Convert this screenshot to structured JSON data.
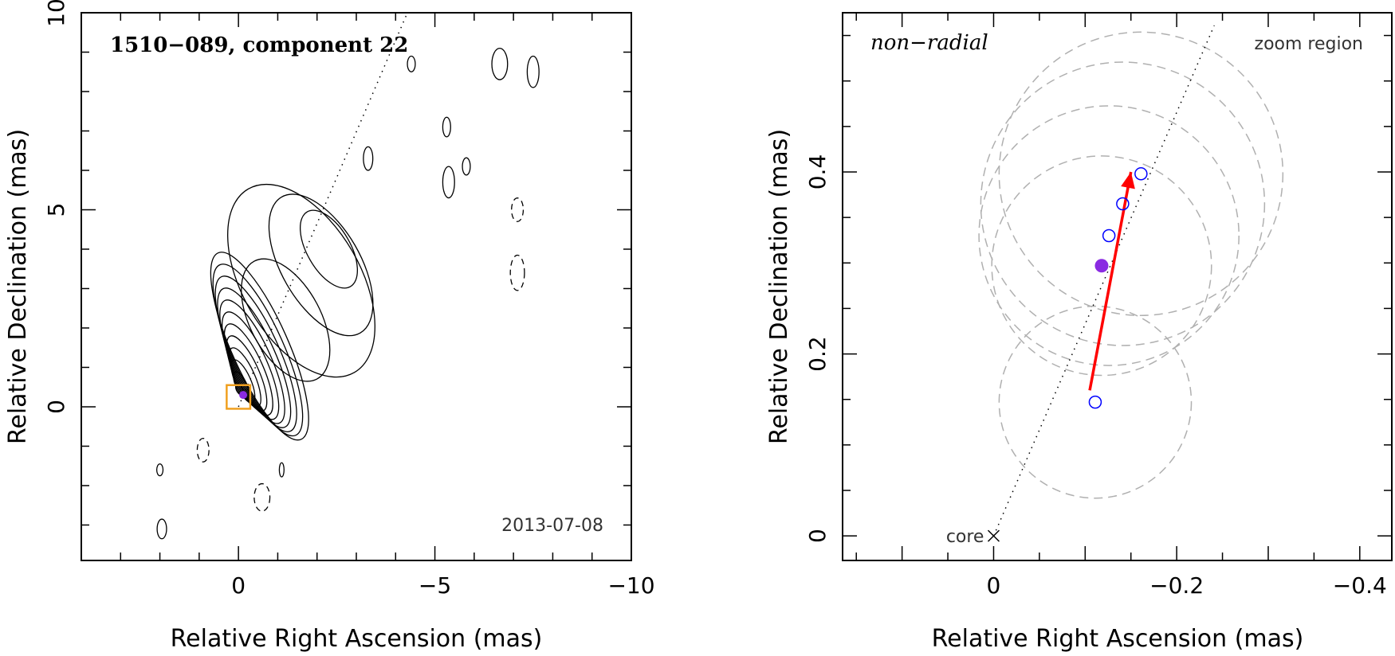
{
  "chart_data": [
    {
      "type": "contour",
      "title": "1510−089, component 22",
      "date_label": "2013-07-08",
      "xlabel": "Relative Right Ascension (mas)",
      "ylabel": "Relative Declination (mas)",
      "xlim": [
        4,
        -10
      ],
      "ylim": [
        -3.9,
        10
      ],
      "x_ticks": [
        0,
        -5,
        -10
      ],
      "x_tick_labels": [
        "0",
        "−5",
        "−10"
      ],
      "y_ticks": [
        0,
        5,
        10
      ],
      "y_tick_labels": [
        "0",
        "5",
        "10"
      ],
      "jet_axis_line": {
        "from": [
          0,
          0
        ],
        "to": [
          -4.3,
          10
        ]
      },
      "zoom_box": {
        "x": [
          0.3,
          -0.3
        ],
        "y": [
          -0.05,
          0.55
        ],
        "color": "#f0a020"
      },
      "components": [
        {
          "x": -0.12,
          "y": 0.3,
          "color": "#8a2be2"
        }
      ],
      "contour_levels": 12,
      "colors": {
        "contour": "#000000",
        "zoom_box": "#f0a020",
        "marker": "#8a2be2"
      }
    },
    {
      "type": "scatter",
      "annotation": "non−radial",
      "corner_label": "zoom region",
      "core_label": "core",
      "xlabel": "Relative Right Ascension (mas)",
      "ylabel": "Relative Declination (mas)",
      "xlim": [
        0.165,
        -0.435
      ],
      "ylim": [
        -0.027,
        0.575
      ],
      "x_ticks": [
        0,
        -0.2,
        -0.4
      ],
      "x_tick_labels": [
        "0",
        "−0.2",
        "−0.4"
      ],
      "y_ticks": [
        0,
        0.2,
        0.4
      ],
      "y_tick_labels": [
        "0",
        "0.2",
        "0.4"
      ],
      "epochs_open": [
        {
          "x": -0.111,
          "y": 0.147
        },
        {
          "x": -0.126,
          "y": 0.33
        },
        {
          "x": -0.141,
          "y": 0.365
        },
        {
          "x": -0.161,
          "y": 0.398
        }
      ],
      "current_epoch": {
        "x": -0.118,
        "y": 0.297
      },
      "position_error_circles": [
        {
          "x": -0.111,
          "y": 0.147,
          "r": 0.105
        },
        {
          "x": -0.118,
          "y": 0.297,
          "r": 0.12
        },
        {
          "x": -0.126,
          "y": 0.33,
          "r": 0.142
        },
        {
          "x": -0.141,
          "y": 0.365,
          "r": 0.155
        },
        {
          "x": -0.161,
          "y": 0.398,
          "r": 0.155
        }
      ],
      "velocity_vector": {
        "from": [
          -0.105,
          0.16
        ],
        "to": [
          -0.15,
          0.4
        ]
      },
      "jet_axis_line": {
        "from": [
          0,
          0
        ],
        "to": [
          -0.241,
          0.561
        ]
      },
      "colors": {
        "vector": "#ff0000",
        "open_marker": "#0000ff",
        "filled_marker": "#8a2be2",
        "circles": "#b0b0b0"
      }
    }
  ]
}
